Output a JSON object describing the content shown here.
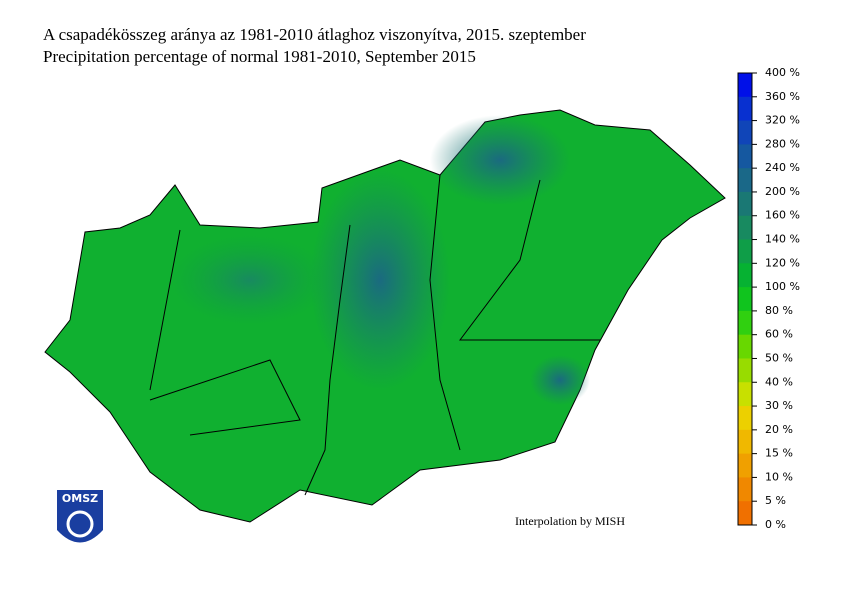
{
  "header": {
    "title": "A csapadékösszeg aránya az 1981-2010 átlaghoz viszonyítva, 2015. szeptember",
    "subtitle": "Precipitation percentage of normal 1981-2010, September 2015"
  },
  "legend": {
    "labels": [
      "400 %",
      "360 %",
      "320 %",
      "280 %",
      "240 %",
      "200 %",
      "160 %",
      "140 %",
      "120 %",
      "100 %",
      "80 %",
      "60 %",
      "50 %",
      "40 %",
      "30 %",
      "20 %",
      "15 %",
      "10 %",
      "5 %",
      "0 %"
    ],
    "colors": [
      "#0010e8",
      "#0830d0",
      "#1045b8",
      "#1558a0",
      "#1a6888",
      "#1a7874",
      "#188a60",
      "#0f9e48",
      "#06b232",
      "#10c41e",
      "#30d010",
      "#68d800",
      "#98dc00",
      "#c8e000",
      "#ecd000",
      "#f0b800",
      "#f0a000",
      "#f08800",
      "#f07000"
    ]
  },
  "credit": "Interpolation by MISH",
  "logo": {
    "text": "OMSZ"
  }
}
